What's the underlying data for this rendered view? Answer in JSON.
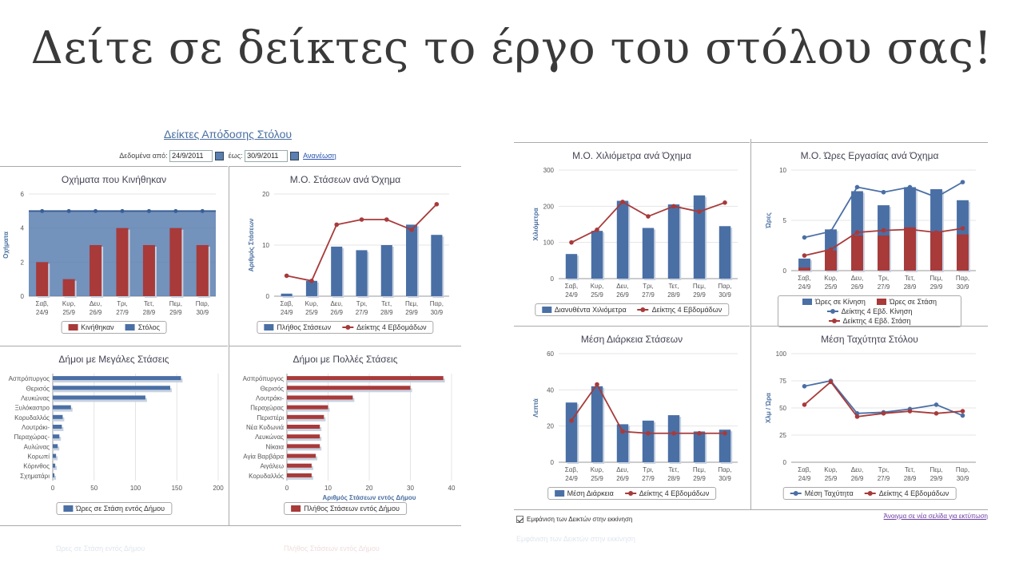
{
  "slide": {
    "title": "Δείτε σε δείκτες το έργο του στόλου σας!"
  },
  "left": {
    "title": "Δείκτες Απόδοσης Στόλου",
    "date_from_label": "Δεδομένα από:",
    "date_from": "24/9/2011",
    "date_to_label": "έως:",
    "date_to": "30/9/2011",
    "refresh": "Ανανέωση"
  },
  "days": [
    "Σαβ,|24/9",
    "Κυρ,|25/9",
    "Δευ,|26/9",
    "Τρι,|27/9",
    "Τετ,|28/9",
    "Πεμ,|29/9",
    "Παρ,|30/9"
  ],
  "colors": {
    "blue": "#4a6fa5",
    "red": "#a83a3a",
    "area": "#5a7fb0"
  },
  "chart_data": [
    {
      "id": "c1",
      "type": "bar",
      "title": "Οχήματα που Κινήθηκαν",
      "ylabel": "Οχήματα",
      "ylim": [
        0,
        6
      ],
      "yticks": [
        0,
        2,
        4,
        6
      ],
      "series": [
        {
          "name": "Κινήθηκαν",
          "kind": "bar",
          "color": "#a83a3a",
          "values": [
            2,
            1,
            3,
            4,
            3,
            4,
            3
          ]
        },
        {
          "name": "Στόλος",
          "kind": "area",
          "color": "#4a6fa5",
          "values": [
            5,
            5,
            5,
            5,
            5,
            5,
            5
          ]
        }
      ]
    },
    {
      "id": "c2",
      "type": "bar",
      "title": "Μ.Ο. Στάσεων ανά Όχημα",
      "ylabel": "Αριθμός Στάσεων",
      "ylim": [
        0,
        20
      ],
      "yticks": [
        0,
        10,
        20
      ],
      "series": [
        {
          "name": "Πλήθος Στάσεων",
          "kind": "bar",
          "color": "#4a6fa5",
          "values": [
            0.5,
            3,
            9.7,
            9,
            10,
            14,
            12
          ]
        },
        {
          "name": "Δείκτης 4 Εβδομάδων",
          "kind": "line",
          "color": "#a83a3a",
          "values": [
            4,
            3,
            14,
            15,
            15,
            13,
            18
          ]
        }
      ]
    },
    {
      "id": "c3",
      "type": "bar",
      "orientation": "horizontal",
      "title": "Δήμοι με Μεγάλες Στάσεις",
      "xlim": [
        0,
        200
      ],
      "xticks": [
        0,
        50,
        100,
        150,
        200
      ],
      "categories": [
        "Ασπρόπυργος",
        "Θερισός",
        "Λευκώνας",
        "Ξυλόκαστρο",
        "Κορυδαλλός",
        "Λουτράκι-",
        "Περαχώρας-",
        "Αυλώνας",
        "Κορωπί",
        "Κόρινθος",
        "Σχηματάρι"
      ],
      "series": [
        {
          "name": "Ώρες σε Στάση εντός Δήμου",
          "color": "#4a6fa5",
          "values": [
            155,
            142,
            112,
            22,
            12,
            11,
            8,
            6,
            4,
            3,
            2
          ]
        }
      ]
    },
    {
      "id": "c4",
      "type": "bar",
      "orientation": "horizontal",
      "title": "Δήμοι με Πολλές Στάσεις",
      "xlabel": "Αριθμός Στάσεων εντός Δήμου",
      "xlim": [
        0,
        40
      ],
      "xticks": [
        0,
        10,
        20,
        30,
        40
      ],
      "categories": [
        "Ασπρόπυργος",
        "Θερισός",
        "Λουτράκι-",
        "Περαχώρας",
        "Περιστέρι",
        "Νέα Κυδωνιά",
        "Λευκώνας",
        "Νίκαια",
        "Αγία Βαρβάρα",
        "Αιγάλεω",
        "Κορυδαλλός"
      ],
      "series": [
        {
          "name": "Πλήθος Στάσεων εντός Δήμου",
          "color": "#a83a3a",
          "values": [
            38,
            30,
            16,
            10,
            9,
            8,
            8,
            8,
            7,
            6,
            6
          ]
        }
      ]
    },
    {
      "id": "c5",
      "type": "bar",
      "title": "Μ.Ο. Χιλιόμετρα ανά Όχημα",
      "ylabel": "Χιλιόμετρα",
      "ylim": [
        0,
        300
      ],
      "yticks": [
        0,
        100,
        200,
        300
      ],
      "series": [
        {
          "name": "Διανυθέντα Χιλιόμετρα",
          "kind": "bar",
          "color": "#4a6fa5",
          "values": [
            68,
            132,
            215,
            140,
            205,
            230,
            145
          ]
        },
        {
          "name": "Δείκτης 4 Εβδομάδων",
          "kind": "line",
          "color": "#a83a3a",
          "values": [
            100,
            135,
            212,
            172,
            200,
            185,
            210
          ]
        }
      ]
    },
    {
      "id": "c6",
      "type": "bar",
      "title": "Μ.Ο. Ώρες Εργασίας ανά Όχημα",
      "ylabel": "Ώρες",
      "ylim": [
        0,
        10
      ],
      "yticks": [
        0,
        5,
        10
      ],
      "series": [
        {
          "name": "Ώρες σε Κίνηση",
          "kind": "stack",
          "color": "#4a6fa5",
          "values": [
            1.2,
            4.1,
            7.9,
            6.5,
            8.3,
            8.1,
            7.0
          ]
        },
        {
          "name": "Ώρες σε Στάση",
          "kind": "stackbase",
          "color": "#a83a3a",
          "values": [
            0.3,
            2.0,
            3.5,
            3.5,
            4.3,
            3.8,
            3.6
          ]
        },
        {
          "name": "Δείκτης 4 Εβδ. Κίνηση",
          "kind": "line",
          "color": "#4a6fa5",
          "values": [
            3.3,
            3.9,
            8.3,
            7.8,
            8.3,
            7.3,
            8.8
          ]
        },
        {
          "name": "Δείκτης 4 Εβδ. Στάση",
          "kind": "line",
          "color": "#a83a3a",
          "values": [
            1.5,
            2.1,
            3.8,
            4.0,
            4.1,
            3.8,
            4.2
          ]
        }
      ]
    },
    {
      "id": "c7",
      "type": "bar",
      "title": "Μέση Διάρκεια Στάσεων",
      "ylabel": "Λεπτά",
      "ylim": [
        0,
        60
      ],
      "yticks": [
        0,
        20,
        40,
        60
      ],
      "series": [
        {
          "name": "Μέση Διάρκεια",
          "kind": "bar",
          "color": "#4a6fa5",
          "values": [
            33,
            42,
            21,
            23,
            26,
            17,
            18
          ]
        },
        {
          "name": "Δείκτης 4 Εβδομάδων",
          "kind": "line",
          "color": "#a83a3a",
          "values": [
            23,
            43,
            17,
            16,
            16,
            16,
            16
          ]
        }
      ]
    },
    {
      "id": "c8",
      "type": "line",
      "title": "Μέση Ταχύτητα Στόλου",
      "ylabel": "Χλμ / Ώρα",
      "ylim": [
        0,
        100
      ],
      "yticks": [
        0,
        25,
        50,
        75,
        100
      ],
      "series": [
        {
          "name": "Μέση Ταχύτητα",
          "kind": "line",
          "color": "#4a6fa5",
          "values": [
            70,
            75,
            45,
            46,
            49,
            53,
            43
          ]
        },
        {
          "name": "Δείκτης 4 Εβδομάδων",
          "kind": "line",
          "color": "#a83a3a",
          "values": [
            53,
            74,
            42,
            45,
            47,
            45,
            47
          ]
        }
      ]
    }
  ],
  "footer": {
    "show_on_start": "Εμφάνιση των Δεικτών στην εκκίνηση",
    "open_print": "Άνοιγμα σε νέα σελίδα για εκτύπωση"
  }
}
